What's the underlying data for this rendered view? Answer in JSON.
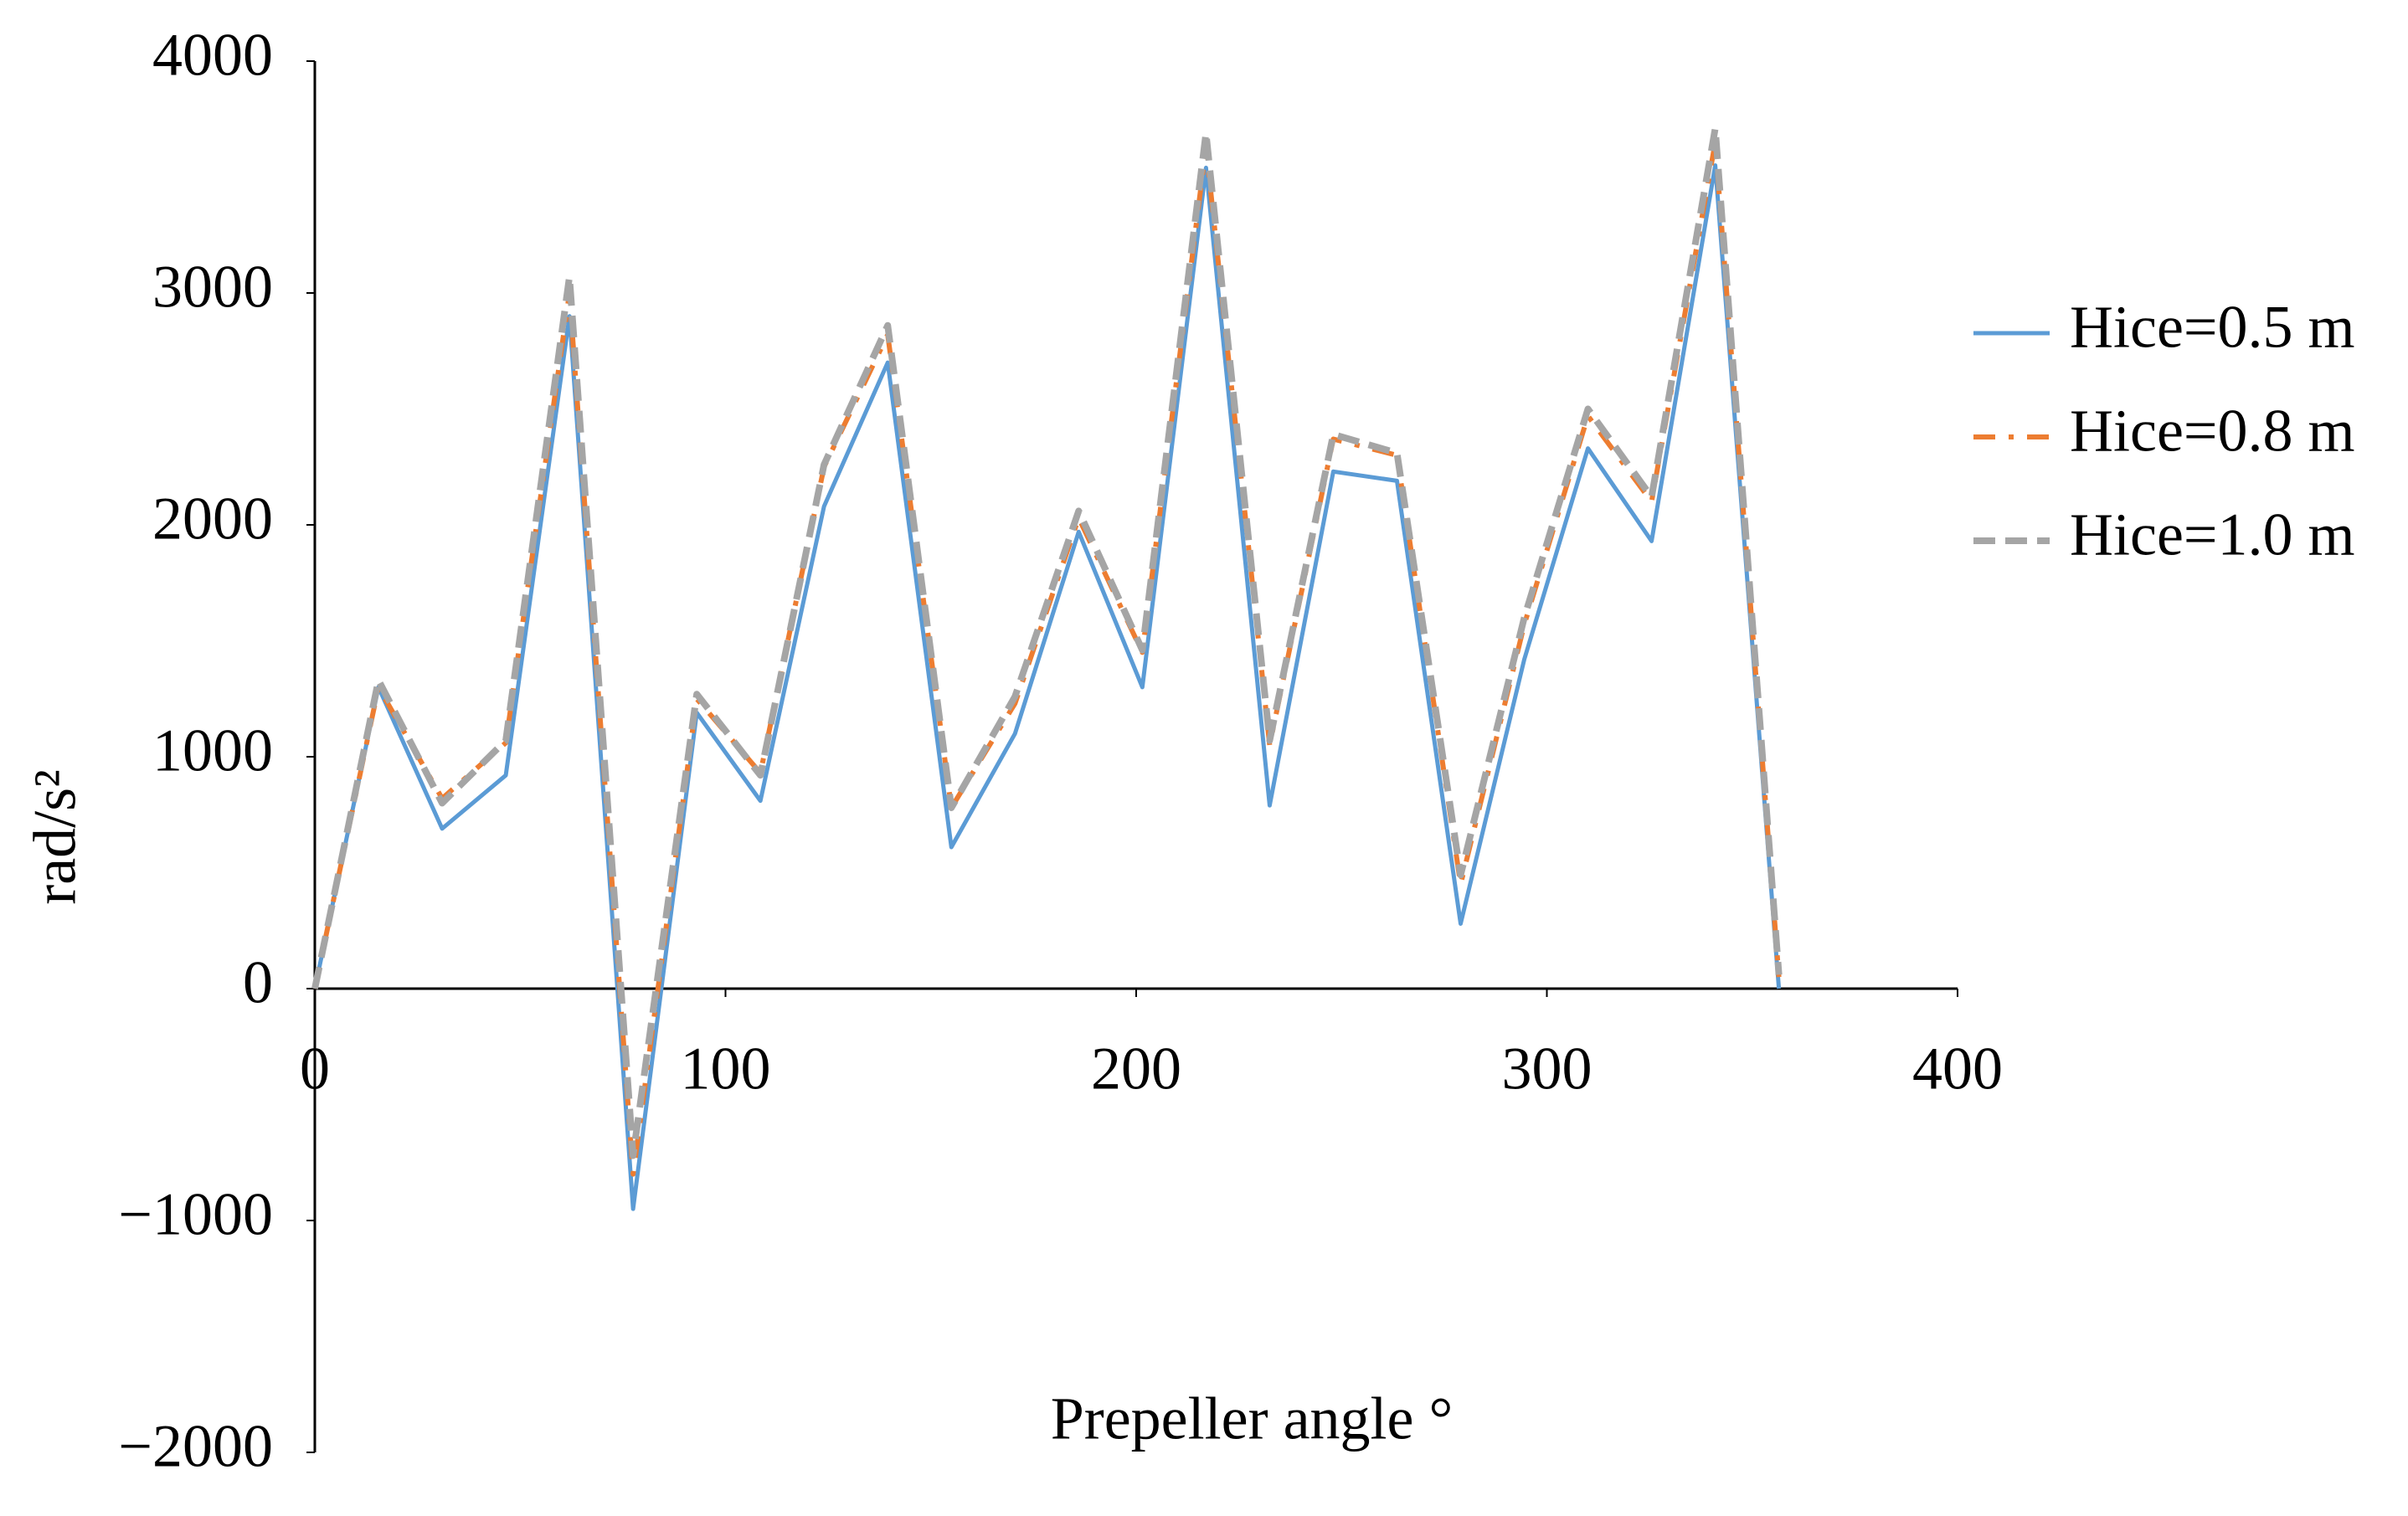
{
  "chart_data": {
    "type": "line",
    "x_label": "Prepeller angle °",
    "y_label": "rad/s²",
    "x": [
      0,
      15.5,
      31,
      46.5,
      62,
      77.5,
      93,
      108.5,
      124,
      139.5,
      155,
      170.5,
      186,
      201.5,
      217,
      232.5,
      248,
      263.5,
      279,
      294.5,
      310,
      325.5,
      341,
      356.5
    ],
    "series": [
      {
        "name": "Hice=0.5 m",
        "color": "#5b9bd5",
        "dash": "solid",
        "values": [
          0,
          1300,
          690,
          920,
          2900,
          -950,
          1190,
          810,
          2080,
          2700,
          610,
          1100,
          1970,
          1300,
          3540,
          790,
          2230,
          2190,
          280,
          1420,
          2330,
          1930,
          3550,
          0
        ]
      },
      {
        "name": "Hice=0.8 m",
        "color": "#ed7d31",
        "dash": "dashdot",
        "values": [
          0,
          1300,
          820,
          1060,
          3000,
          -800,
          1250,
          930,
          2250,
          2820,
          780,
          1230,
          2030,
          1450,
          3630,
          1050,
          2370,
          2300,
          450,
          1570,
          2470,
          2100,
          3650,
          50
        ]
      },
      {
        "name": "Hice=1.0 m",
        "color": "#a5a5a5",
        "dash": "dash",
        "values": [
          0,
          1330,
          800,
          1070,
          3070,
          -720,
          1270,
          920,
          2260,
          2860,
          780,
          1260,
          2060,
          1460,
          3690,
          1070,
          2390,
          2310,
          490,
          1600,
          2500,
          2120,
          3710,
          60
        ]
      }
    ],
    "xlim": [
      0,
      400
    ],
    "xticks": [
      0,
      100,
      200,
      300,
      400
    ],
    "ylim": [
      -2000,
      4000
    ],
    "yticks": [
      {
        "value": -2000,
        "label": "−2000"
      },
      {
        "value": -1000,
        "label": "−1000"
      },
      0,
      1000,
      2000,
      3000,
      4000
    ],
    "legend": "right"
  }
}
